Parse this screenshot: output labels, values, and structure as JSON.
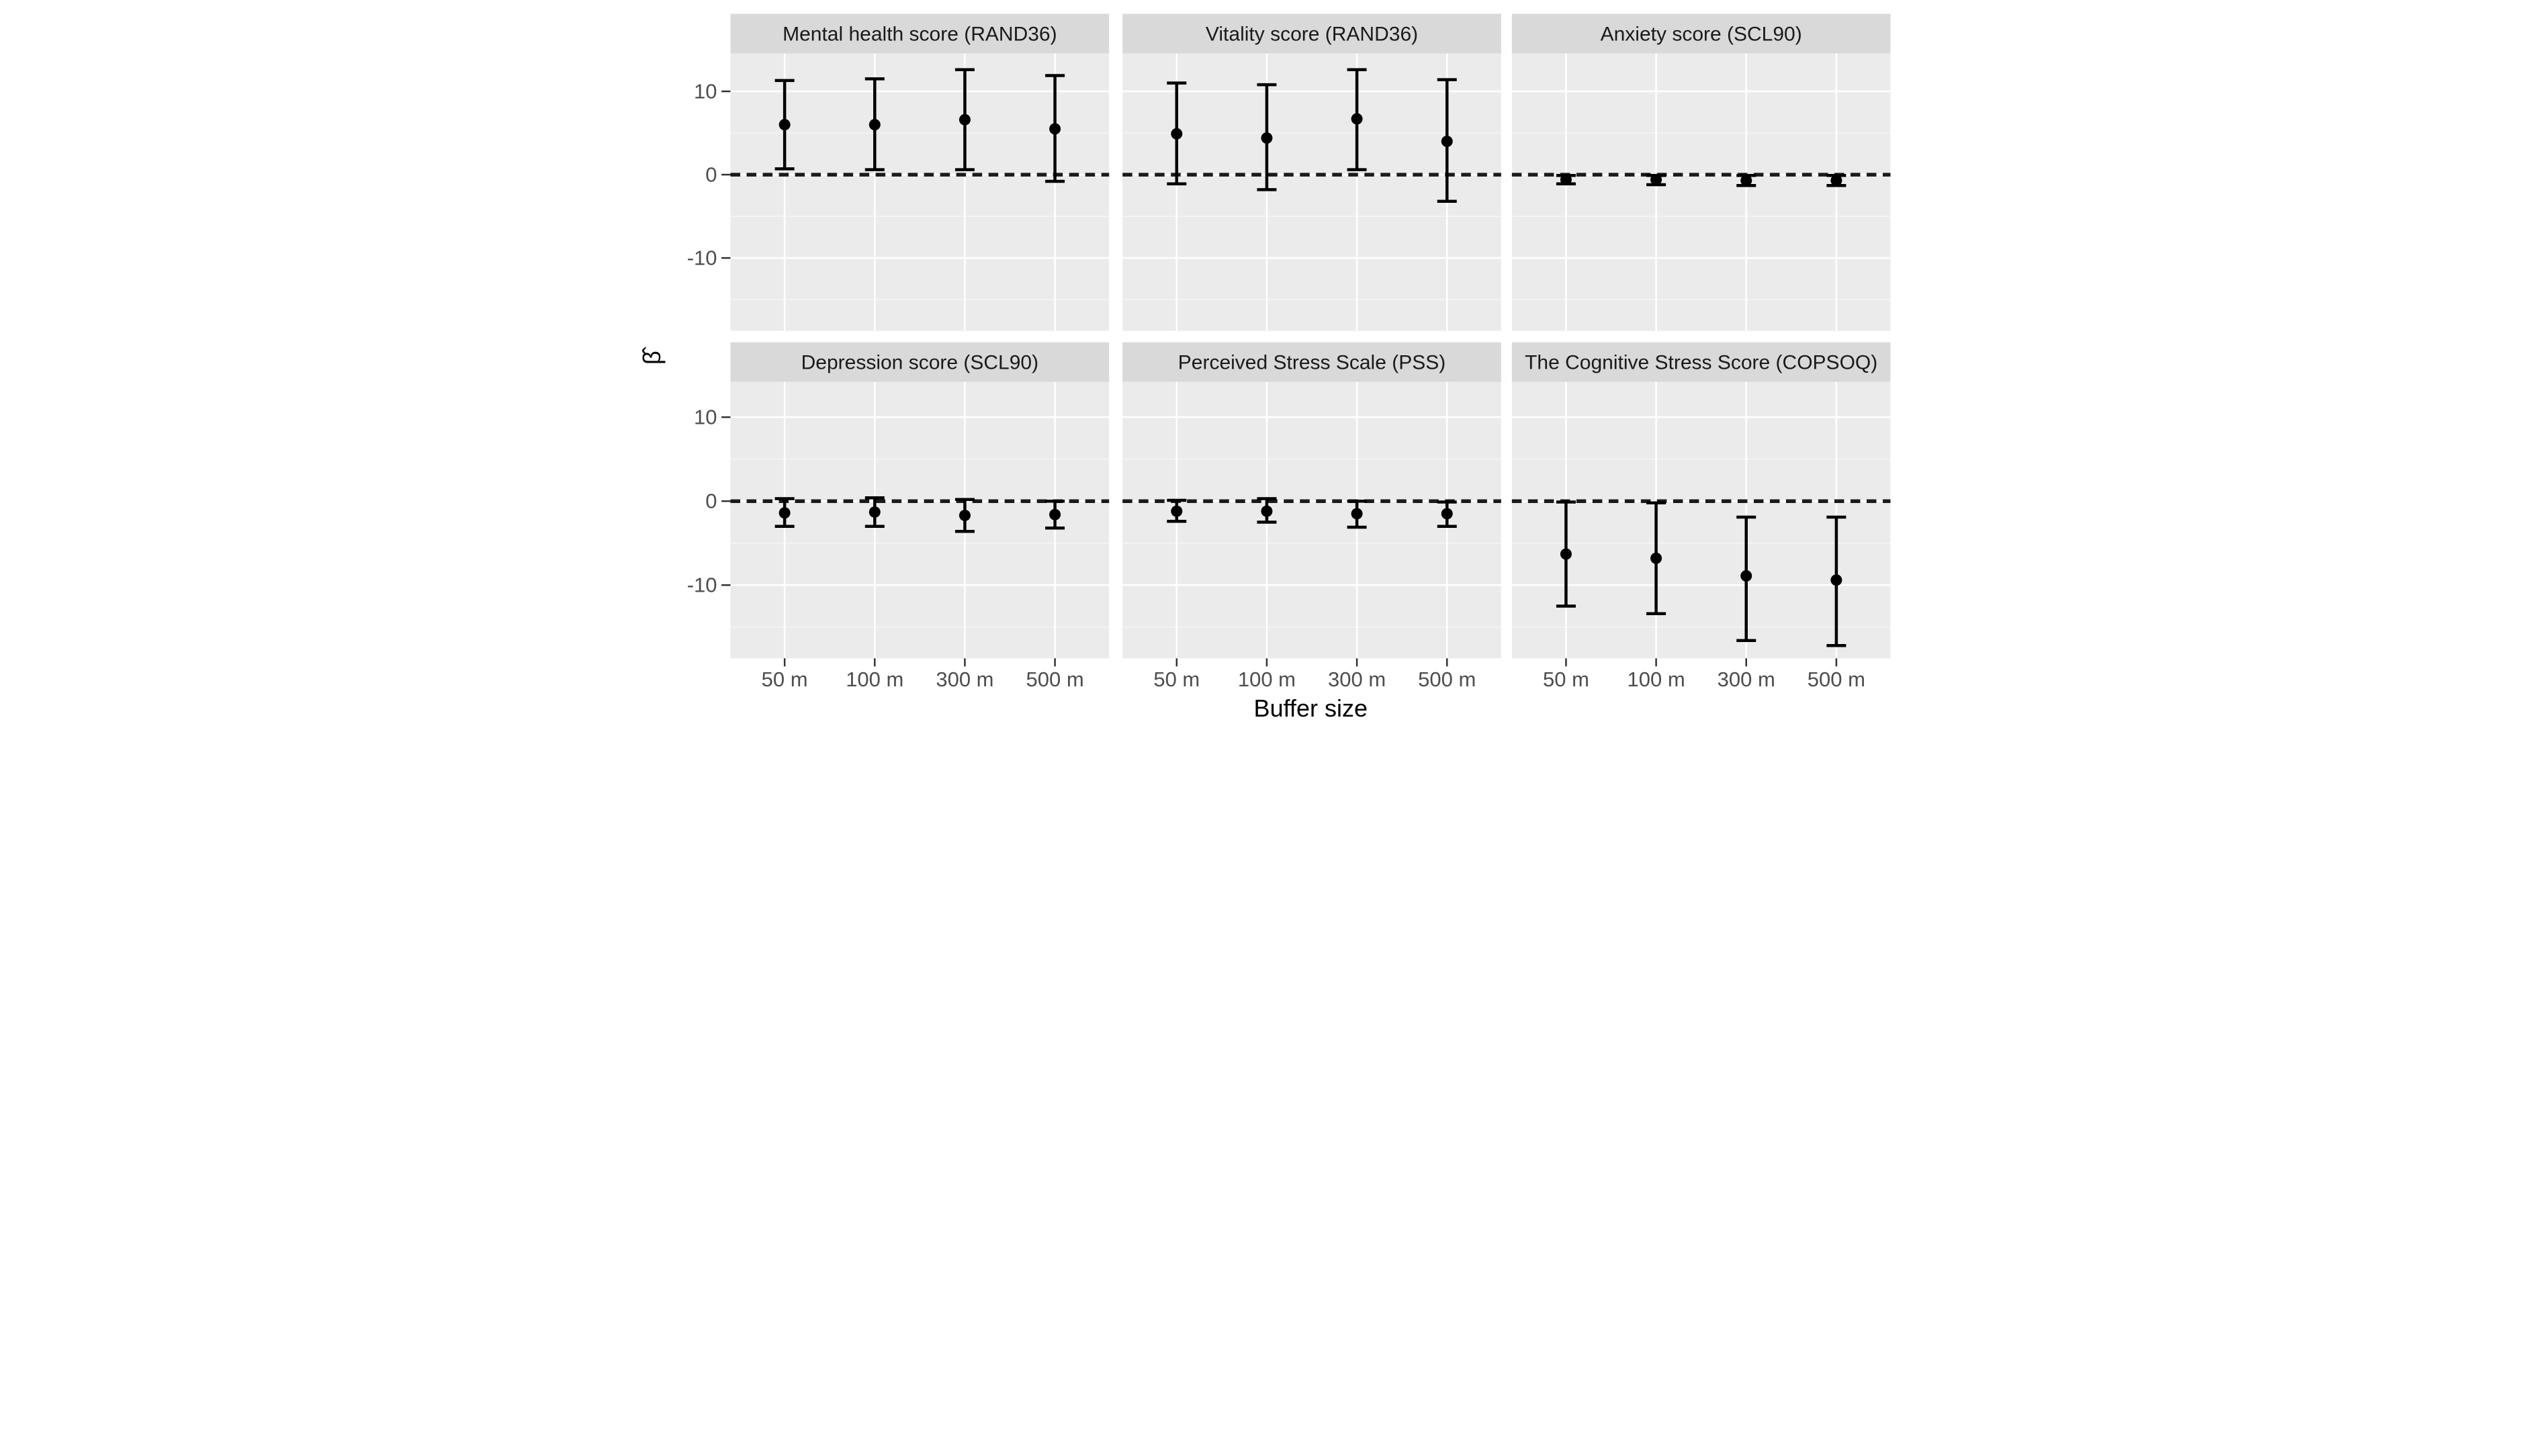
{
  "chart_data": {
    "type": "scatter",
    "subtype": "point-estimate-with-error-bars, faceted 2x3",
    "title": "",
    "xlabel": "Buffer size",
    "ylabel": "β̂",
    "categories": [
      "50 m",
      "100 m",
      "300 m",
      "500 m"
    ],
    "yticks": [
      10,
      0,
      -10
    ],
    "ylim": [
      -18.7,
      14.5
    ],
    "grid": "on",
    "legend": "none",
    "reference_line_y": 0,
    "facets": [
      {
        "title": "Mental health score (RAND36)",
        "series": [
          {
            "x": "50 m",
            "y": 6.0,
            "ci_low": 0.7,
            "ci_high": 11.3
          },
          {
            "x": "100 m",
            "y": 6.0,
            "ci_low": 0.6,
            "ci_high": 11.5
          },
          {
            "x": "300 m",
            "y": 6.6,
            "ci_low": 0.6,
            "ci_high": 12.6
          },
          {
            "x": "500 m",
            "y": 5.5,
            "ci_low": -0.8,
            "ci_high": 11.9
          }
        ]
      },
      {
        "title": "Vitality score (RAND36)",
        "series": [
          {
            "x": "50 m",
            "y": 4.9,
            "ci_low": -1.1,
            "ci_high": 11.0
          },
          {
            "x": "100 m",
            "y": 4.4,
            "ci_low": -1.8,
            "ci_high": 10.8
          },
          {
            "x": "300 m",
            "y": 6.7,
            "ci_low": 0.6,
            "ci_high": 12.6
          },
          {
            "x": "500 m",
            "y": 4.0,
            "ci_low": -3.2,
            "ci_high": 11.4
          }
        ]
      },
      {
        "title": "Anxiety score (SCL90)",
        "series": [
          {
            "x": "50 m",
            "y": -0.6,
            "ci_low": -1.1,
            "ci_high": -0.1
          },
          {
            "x": "100 m",
            "y": -0.6,
            "ci_low": -1.2,
            "ci_high": -0.1
          },
          {
            "x": "300 m",
            "y": -0.7,
            "ci_low": -1.3,
            "ci_high": -0.1
          },
          {
            "x": "500 m",
            "y": -0.7,
            "ci_low": -1.3,
            "ci_high": -0.1
          }
        ]
      },
      {
        "title": "Depression score (SCL90)",
        "series": [
          {
            "x": "50 m",
            "y": -1.4,
            "ci_low": -3.0,
            "ci_high": 0.3
          },
          {
            "x": "100 m",
            "y": -1.3,
            "ci_low": -3.0,
            "ci_high": 0.4
          },
          {
            "x": "300 m",
            "y": -1.7,
            "ci_low": -3.6,
            "ci_high": 0.2
          },
          {
            "x": "500 m",
            "y": -1.6,
            "ci_low": -3.2,
            "ci_high": 0.0
          }
        ]
      },
      {
        "title": "Perceived Stress Scale (PSS)",
        "series": [
          {
            "x": "50 m",
            "y": -1.2,
            "ci_low": -2.4,
            "ci_high": 0.1
          },
          {
            "x": "100 m",
            "y": -1.2,
            "ci_low": -2.5,
            "ci_high": 0.3
          },
          {
            "x": "300 m",
            "y": -1.5,
            "ci_low": -3.1,
            "ci_high": 0.0
          },
          {
            "x": "500 m",
            "y": -1.5,
            "ci_low": -3.0,
            "ci_high": -0.1
          }
        ]
      },
      {
        "title": "The Cognitive Stress Score (COPSOQ)",
        "series": [
          {
            "x": "50 m",
            "y": -6.3,
            "ci_low": -12.5,
            "ci_high": -0.1
          },
          {
            "x": "100 m",
            "y": -6.8,
            "ci_low": -13.4,
            "ci_high": -0.2
          },
          {
            "x": "300 m",
            "y": -8.9,
            "ci_low": -16.6,
            "ci_high": -1.9
          },
          {
            "x": "500 m",
            "y": -9.4,
            "ci_low": -17.2,
            "ci_high": -1.9
          }
        ]
      }
    ],
    "colors": {
      "panel_background": "#ebebeb",
      "strip_background": "#d9d9d9",
      "gridline_major": "#ffffff",
      "gridline_minor": "#f5f5f5",
      "point": "#000000",
      "error_bar": "#000000",
      "reference_line": "#1a1a1a",
      "tick_mark": "#333333",
      "tick_label": "#4d4d4d",
      "strip_text": "#1a1a1a",
      "axis_title": "#000000"
    }
  }
}
